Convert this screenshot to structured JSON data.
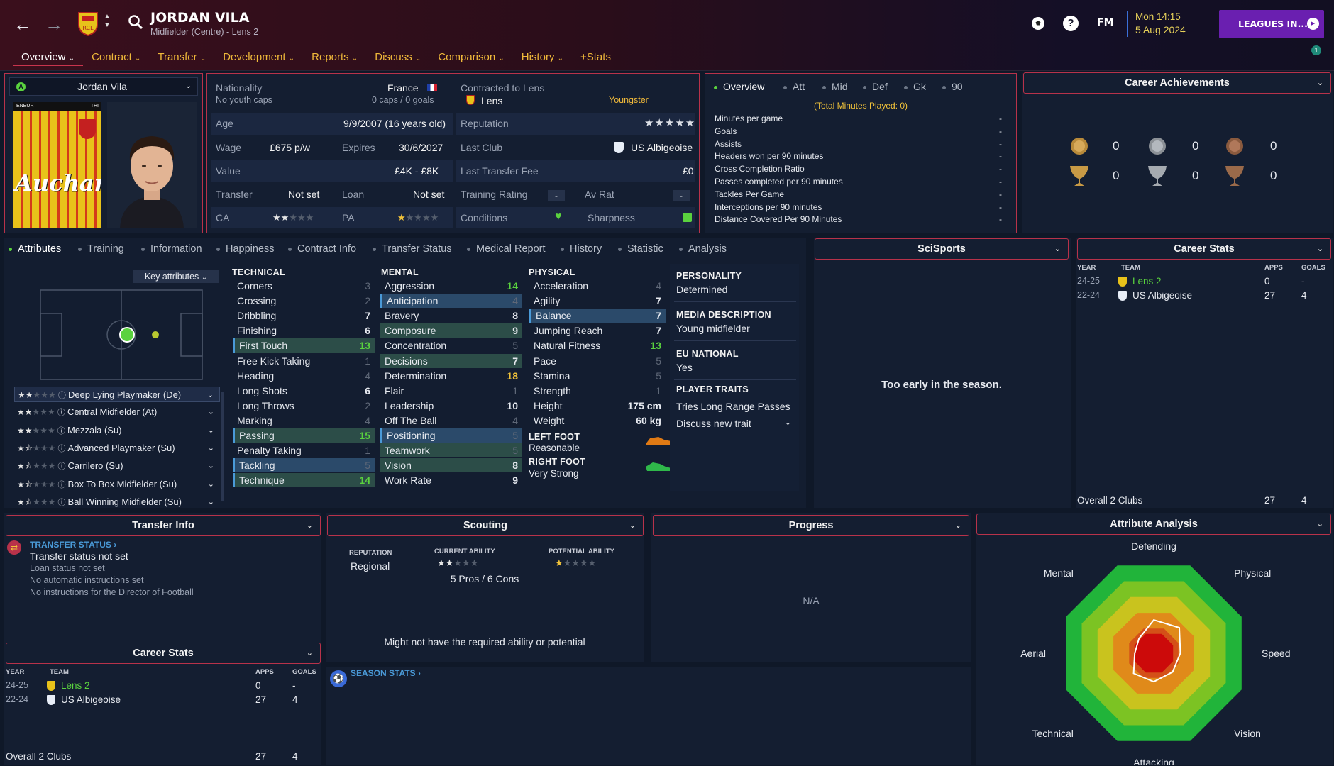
{
  "header": {
    "player_name": "JORDAN VILA",
    "player_sub": "Midfielder (Centre) - Lens 2",
    "time": "Mon 14:15",
    "date": "5 Aug 2024",
    "leagues_btn": "LEAGUES IN...",
    "fm_label": "FM",
    "help_label": "?",
    "notif_count": "1",
    "tabs": [
      "Overview",
      "Contract",
      "Transfer",
      "Development",
      "Reports",
      "Discuss",
      "Comparison",
      "History",
      "+Stats"
    ]
  },
  "profile": {
    "selector_name": "Jordan Vila",
    "kit_text": "Auchan",
    "kit_top_left": "ENEUR",
    "kit_top_right": "THI"
  },
  "info": {
    "nationality_label": "Nationality",
    "nationality": "France",
    "youth_caps": "No youth caps",
    "caps": "0 caps / 0 goals",
    "contracted_label": "Contracted to Lens",
    "club": "Lens",
    "youngster": "Youngster",
    "age_label": "Age",
    "age": "9/9/2007 (16 years old)",
    "reputation_label": "Reputation",
    "reputation_stars": "★★★★★",
    "wage_label": "Wage",
    "wage": "£675 p/w",
    "expires_label": "Expires",
    "expires": "30/6/2027",
    "last_club_label": "Last Club",
    "last_club": "US Albigeoise",
    "value_label": "Value",
    "value": "£4K - £8K",
    "last_fee_label": "Last Transfer Fee",
    "last_fee": "£0",
    "transfer_label": "Transfer",
    "transfer": "Not set",
    "loan_label": "Loan",
    "loan": "Not set",
    "training_label": "Training Rating",
    "training": "-",
    "avrat_label": "Av Rat",
    "avrat": "-",
    "ca_label": "CA",
    "pa_label": "PA",
    "conditions_label": "Conditions",
    "sharpness_label": "Sharpness"
  },
  "overview_stats": {
    "tabs": [
      "Overview",
      "Att",
      "Mid",
      "Def",
      "Gk",
      "90"
    ],
    "total_minutes": "(Total Minutes Played: 0)",
    "rows": [
      {
        "label": "Minutes per game",
        "value": "-"
      },
      {
        "label": "Goals",
        "value": "-"
      },
      {
        "label": "Assists",
        "value": "-"
      },
      {
        "label": "Headers won per 90 minutes",
        "value": "-"
      },
      {
        "label": "Cross Completion Ratio",
        "value": "-"
      },
      {
        "label": "Passes completed per 90 minutes",
        "value": "-"
      },
      {
        "label": "Tackles Per Game",
        "value": "-"
      },
      {
        "label": "Interceptions per 90 minutes",
        "value": "-"
      },
      {
        "label": "Distance Covered Per 90 Minutes",
        "value": "-"
      }
    ]
  },
  "achievements": {
    "title": "Career Achievements",
    "medals": [
      "0",
      "0",
      "0"
    ],
    "trophies": [
      "0",
      "0",
      "0"
    ]
  },
  "subtabs": [
    "Attributes",
    "Training",
    "Information",
    "Happiness",
    "Contract Info",
    "Transfer Status",
    "Medical Report",
    "History",
    "Statistic",
    "Analysis"
  ],
  "attributes": {
    "key_attributes": "Key attributes",
    "technical_title": "TECHNICAL",
    "mental_title": "MENTAL",
    "physical_title": "PHYSICAL",
    "technical": [
      {
        "name": "Corners",
        "v": "3"
      },
      {
        "name": "Crossing",
        "v": "2"
      },
      {
        "name": "Dribbling",
        "v": "7"
      },
      {
        "name": "Finishing",
        "v": "6"
      },
      {
        "name": "First Touch",
        "v": "13"
      },
      {
        "name": "Free Kick Taking",
        "v": "1"
      },
      {
        "name": "Heading",
        "v": "4"
      },
      {
        "name": "Long Shots",
        "v": "6"
      },
      {
        "name": "Long Throws",
        "v": "2"
      },
      {
        "name": "Marking",
        "v": "4"
      },
      {
        "name": "Passing",
        "v": "15"
      },
      {
        "name": "Penalty Taking",
        "v": "1"
      },
      {
        "name": "Tackling",
        "v": "5"
      },
      {
        "name": "Technique",
        "v": "14"
      }
    ],
    "mental": [
      {
        "name": "Aggression",
        "v": "14"
      },
      {
        "name": "Anticipation",
        "v": "4"
      },
      {
        "name": "Bravery",
        "v": "8"
      },
      {
        "name": "Composure",
        "v": "9"
      },
      {
        "name": "Concentration",
        "v": "5"
      },
      {
        "name": "Decisions",
        "v": "7"
      },
      {
        "name": "Determination",
        "v": "18"
      },
      {
        "name": "Flair",
        "v": "1"
      },
      {
        "name": "Leadership",
        "v": "10"
      },
      {
        "name": "Off The Ball",
        "v": "4"
      },
      {
        "name": "Positioning",
        "v": "5"
      },
      {
        "name": "Teamwork",
        "v": "5"
      },
      {
        "name": "Vision",
        "v": "8"
      },
      {
        "name": "Work Rate",
        "v": "9"
      }
    ],
    "physical": [
      {
        "name": "Acceleration",
        "v": "4"
      },
      {
        "name": "Agility",
        "v": "7"
      },
      {
        "name": "Balance",
        "v": "7"
      },
      {
        "name": "Jumping Reach",
        "v": "7"
      },
      {
        "name": "Natural Fitness",
        "v": "13"
      },
      {
        "name": "Pace",
        "v": "5"
      },
      {
        "name": "Stamina",
        "v": "5"
      },
      {
        "name": "Strength",
        "v": "1"
      },
      {
        "name": "Height",
        "v": "175 cm"
      },
      {
        "name": "Weight",
        "v": "60 kg"
      }
    ],
    "left_foot_label": "LEFT FOOT",
    "left_foot": "Reasonable",
    "right_foot_label": "RIGHT FOOT",
    "right_foot": "Very Strong",
    "personality_label": "PERSONALITY",
    "personality": "Determined",
    "media_label": "MEDIA DESCRIPTION",
    "media": "Young midfielder",
    "eu_label": "EU NATIONAL",
    "eu": "Yes",
    "traits_label": "PLAYER TRAITS",
    "trait1": "Tries Long Range Passes",
    "trait2": "Discuss new trait",
    "roles": [
      {
        "name": "Deep Lying Playmaker (De)",
        "stars": 2
      },
      {
        "name": "Central Midfielder (At)",
        "stars": 2
      },
      {
        "name": "Mezzala (Su)",
        "stars": 2
      },
      {
        "name": "Advanced Playmaker (Su)",
        "stars": 1.5
      },
      {
        "name": "Carrilero (Su)",
        "stars": 1.5
      },
      {
        "name": "Box To Box Midfielder (Su)",
        "stars": 1.5
      },
      {
        "name": "Ball Winning Midfielder (Su)",
        "stars": 1.5
      }
    ]
  },
  "scisports": {
    "title": "SciSports",
    "message": "Too early in the season."
  },
  "career_stats_right": {
    "title": "Career Stats",
    "headers": [
      "YEAR",
      "TEAM",
      "APPS",
      "GOALS"
    ],
    "rows": [
      {
        "year": "24-25",
        "team": "Lens 2",
        "apps": "0",
        "goals": "-"
      },
      {
        "year": "22-24",
        "team": "US Albigeoise",
        "apps": "27",
        "goals": "4"
      }
    ],
    "overall": "Overall 2 Clubs",
    "overall_apps": "27",
    "overall_goals": "4"
  },
  "transfer_info": {
    "title": "Transfer Info",
    "status_link": "TRANSFER STATUS",
    "status": "Transfer status not set",
    "loan": "Loan status not set",
    "auto": "No automatic instructions set",
    "dof": "No instructions for the Director of Football"
  },
  "career_stats_left": {
    "title": "Career Stats",
    "headers": [
      "YEAR",
      "TEAM",
      "APPS",
      "GOALS"
    ],
    "rows": [
      {
        "year": "24-25",
        "team": "Lens 2",
        "apps": "0",
        "goals": "-"
      },
      {
        "year": "22-24",
        "team": "US Albigeoise",
        "apps": "27",
        "goals": "4"
      }
    ],
    "overall": "Overall 2 Clubs",
    "overall_apps": "27",
    "overall_goals": "4"
  },
  "scouting": {
    "title": "Scouting",
    "reputation_label": "REPUTATION",
    "reputation": "Regional",
    "ca_label": "CURRENT ABILITY",
    "pa_label": "POTENTIAL ABILITY",
    "pros_cons": "5 Pros / 6 Cons",
    "note": "Might not have the required ability or potential"
  },
  "progress": {
    "title": "Progress",
    "value": "N/A"
  },
  "season_stats": {
    "link": "SEASON STATS"
  },
  "attribute_analysis": {
    "title": "Attribute Analysis",
    "axes": [
      "Defending",
      "Physical",
      "Speed",
      "Vision",
      "Attacking",
      "Technical",
      "Aerial",
      "Mental"
    ],
    "values": [
      0.35,
      0.38,
      0.28,
      0.28,
      0.3,
      0.3,
      0.2,
      0.22
    ]
  },
  "colors": {
    "accent_red": "#b8324a",
    "gold": "#f0b93a",
    "green": "#5ad23e",
    "purple": "#6a1fb0"
  }
}
